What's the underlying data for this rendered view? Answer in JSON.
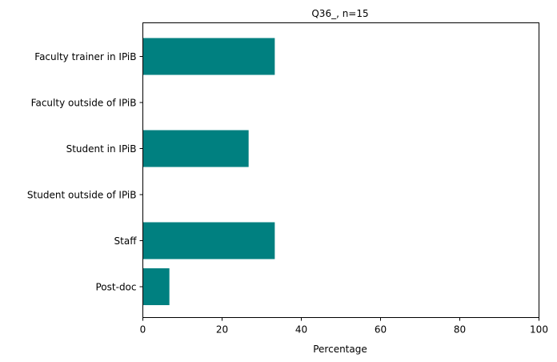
{
  "chart_data": {
    "type": "bar",
    "orientation": "horizontal",
    "title": "Q36_, n=15",
    "xlabel": "Percentage",
    "ylabel": "",
    "xlim": [
      0,
      100
    ],
    "xticks": [
      "0",
      "20",
      "40",
      "60",
      "80",
      "100"
    ],
    "categories": [
      "Faculty trainer in IPiB",
      "Faculty outside of IPiB",
      "Student in IPiB",
      "Student outside of IPiB",
      "Staff",
      "Post-doc"
    ],
    "values": [
      33.3,
      0,
      26.7,
      0,
      33.3,
      6.7
    ],
    "bar_color": "#008080",
    "grid": false,
    "legend": "none"
  }
}
